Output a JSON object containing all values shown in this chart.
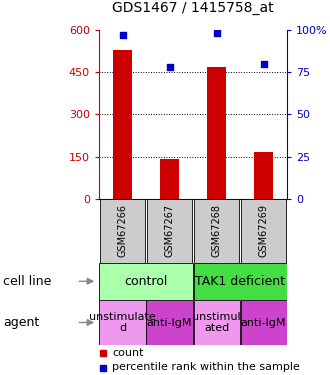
{
  "title": "GDS1467 / 1415758_at",
  "samples": [
    "GSM67266",
    "GSM67267",
    "GSM67268",
    "GSM67269"
  ],
  "bar_values": [
    530,
    140,
    470,
    165
  ],
  "percentile_values": [
    97,
    78,
    98,
    80
  ],
  "bar_color": "#cc0000",
  "marker_color": "#0000cc",
  "left_ylim": [
    0,
    600
  ],
  "right_ylim": [
    0,
    100
  ],
  "left_yticks": [
    0,
    150,
    300,
    450,
    600
  ],
  "right_yticks": [
    0,
    25,
    50,
    75,
    100
  ],
  "left_tick_labels": [
    "0",
    "150",
    "300",
    "450",
    "600"
  ],
  "right_tick_labels": [
    "0",
    "25",
    "50",
    "75",
    "100%"
  ],
  "cell_line_labels": [
    "control",
    "TAK1 deficient"
  ],
  "cell_line_spans": [
    [
      0,
      2
    ],
    [
      2,
      4
    ]
  ],
  "cell_line_colors": [
    "#aaffaa",
    "#44dd44"
  ],
  "agent_labels": [
    "unstimulate\nd",
    "anti-IgM",
    "unstimul\nated",
    "anti-IgM"
  ],
  "agent_colors_light": "#ee99ee",
  "agent_colors_dark": "#cc44cc",
  "agent_color_pattern": [
    0,
    1,
    0,
    1
  ],
  "sample_bg_color": "#cccccc",
  "left_axis_color": "#cc0000",
  "right_axis_color": "#0000cc",
  "grid_dotted_ticks": [
    150,
    300,
    450
  ],
  "bar_width": 0.4,
  "legend_count_color": "#cc0000",
  "legend_pct_color": "#0000cc",
  "row_labels": [
    "cell line",
    "agent"
  ],
  "row_label_fontsize": 9,
  "sample_fontsize": 7,
  "cell_line_fontsize": 9,
  "agent_fontsize": 8,
  "legend_fontsize": 8,
  "title_fontsize": 10
}
